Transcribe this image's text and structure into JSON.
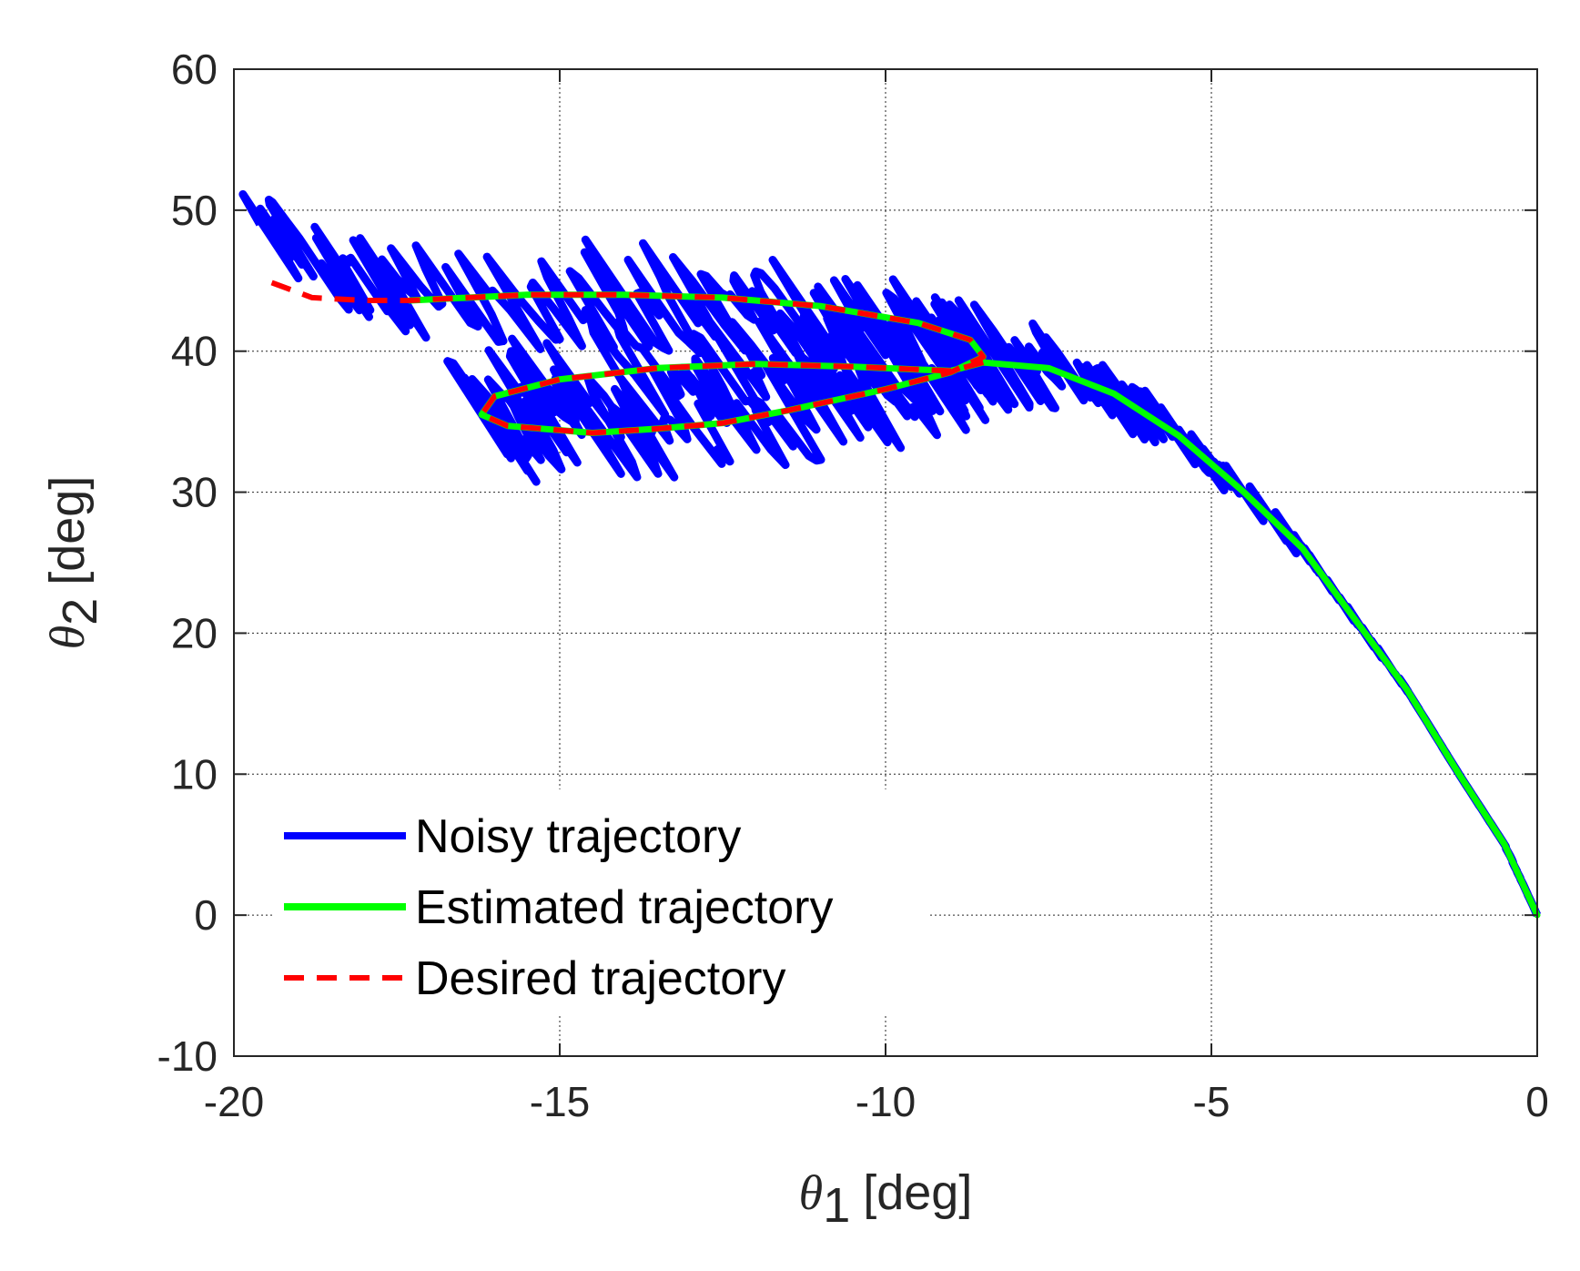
{
  "chart_data": {
    "type": "line",
    "xlabel": {
      "symbol": "θ",
      "subscript": "1",
      "unit": "[deg]"
    },
    "ylabel": {
      "symbol": "θ",
      "subscript": "2",
      "unit": "[deg]"
    },
    "xlim": [
      -20,
      0
    ],
    "ylim": [
      -10,
      60
    ],
    "xticks": [
      -20,
      -15,
      -10,
      -5,
      0
    ],
    "yticks": [
      -10,
      0,
      10,
      20,
      30,
      40,
      50,
      60
    ],
    "xtick_labels": [
      "-20",
      "-15",
      "-10",
      "-5",
      "0"
    ],
    "ytick_labels": [
      "-10",
      "0",
      "10",
      "20",
      "30",
      "40",
      "50",
      "60"
    ],
    "grid": true,
    "legend_position": "bottom-left",
    "series": [
      {
        "name": "Noisy trajectory",
        "color": "#0000ff",
        "style": "solid",
        "jitter": [
          0.55,
          4.0
        ],
        "x": [
          0,
          -0.5,
          -1.2,
          -2.0,
          -2.8,
          -3.6,
          -4.5,
          -5.5,
          -6.5,
          -7.5,
          -8.5,
          -9.2,
          -10.5,
          -12,
          -13.5,
          -15,
          -16.2,
          -15.8,
          -14.5,
          -13,
          -11.5,
          -10,
          -9.0,
          -8.5,
          -9.5,
          -11,
          -12.5,
          -14,
          -15.5,
          -17.3,
          -18.5,
          -19.6
        ],
        "y": [
          0,
          5,
          10,
          16,
          21,
          26,
          30,
          34,
          37,
          39,
          40,
          39,
          39,
          39,
          38.5,
          37.5,
          35.5,
          34,
          34.5,
          35,
          36,
          37,
          38.5,
          40,
          41.5,
          42.5,
          43.5,
          44,
          44,
          44,
          46,
          49
        ]
      },
      {
        "name": "Estimated trajectory",
        "color": "#00ff00",
        "style": "solid",
        "x": [
          0,
          -0.5,
          -1.2,
          -2.0,
          -2.8,
          -3.6,
          -4.5,
          -5.5,
          -6.5,
          -7.5,
          -8.5,
          -9.0,
          -10.5,
          -12,
          -13.5,
          -15,
          -16.0,
          -16.2,
          -15.8,
          -14.5,
          -13.5,
          -12.5,
          -11.5,
          -10,
          -9.0,
          -8.5,
          -8.7,
          -9.5,
          -11,
          -12.5,
          -14,
          -15.5,
          -17.3
        ],
        "y": [
          0,
          5,
          10,
          16,
          21,
          26,
          30,
          34,
          37,
          38.8,
          39.2,
          38.6,
          38.9,
          39.1,
          38.8,
          38.0,
          36.8,
          35.5,
          34.7,
          34.2,
          34.5,
          34.9,
          35.8,
          37.3,
          38.5,
          39.6,
          40.8,
          42.0,
          43.2,
          43.8,
          44.0,
          44.0,
          43.6
        ]
      },
      {
        "name": "Desired trajectory",
        "color": "#ff0000",
        "style": "dashed",
        "x": [
          -8.5,
          -9.0,
          -10.5,
          -12,
          -13.5,
          -15,
          -16.0,
          -16.2,
          -15.8,
          -14.5,
          -13.5,
          -12.5,
          -11.5,
          -10,
          -9.0,
          -8.5,
          -8.7,
          -9.5,
          -11,
          -12.5,
          -14,
          -15.5,
          -17.3,
          -18.0,
          -18.8,
          -19.5
        ],
        "y": [
          39.2,
          38.6,
          38.9,
          39.1,
          38.8,
          38.0,
          36.8,
          35.5,
          34.7,
          34.2,
          34.5,
          34.9,
          35.8,
          37.3,
          38.5,
          39.6,
          40.8,
          42.0,
          43.2,
          43.8,
          44.0,
          44.0,
          43.6,
          43.6,
          43.8,
          45.0
        ]
      }
    ]
  }
}
